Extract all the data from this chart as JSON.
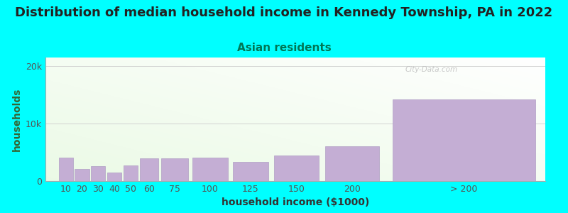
{
  "title": "Distribution of median household income in Kennedy Township, PA in 2022",
  "subtitle": "Asian residents",
  "xlabel": "household income ($1000)",
  "ylabel": "households",
  "background_color": "#00FFFF",
  "bar_color": "#c4aed4",
  "bar_edge_color": "#b09ec4",
  "categories": [
    "10",
    "20",
    "30",
    "40",
    "50",
    "60",
    "75",
    "100",
    "125",
    "150",
    "200",
    "> 200"
  ],
  "values": [
    4100,
    2100,
    2600,
    1500,
    2700,
    3900,
    3900,
    4100,
    3300,
    4500,
    6000,
    14200
  ],
  "bar_widths": [
    8,
    8,
    8,
    8,
    8,
    10,
    15,
    20,
    20,
    25,
    30,
    80
  ],
  "bar_lefts": [
    6,
    14,
    22,
    30,
    38,
    46,
    56,
    71,
    91,
    111,
    136,
    166
  ],
  "ylim": [
    0,
    21500
  ],
  "yticks": [
    0,
    10000,
    20000
  ],
  "ytick_labels": [
    "0",
    "10k",
    "20k"
  ],
  "title_fontsize": 13,
  "subtitle_fontsize": 11,
  "axis_label_fontsize": 10,
  "tick_fontsize": 9,
  "watermark": "City-Data.com",
  "title_color": "#222222",
  "subtitle_color": "#007755",
  "ylabel_color": "#336633",
  "xlabel_color": "#333333"
}
